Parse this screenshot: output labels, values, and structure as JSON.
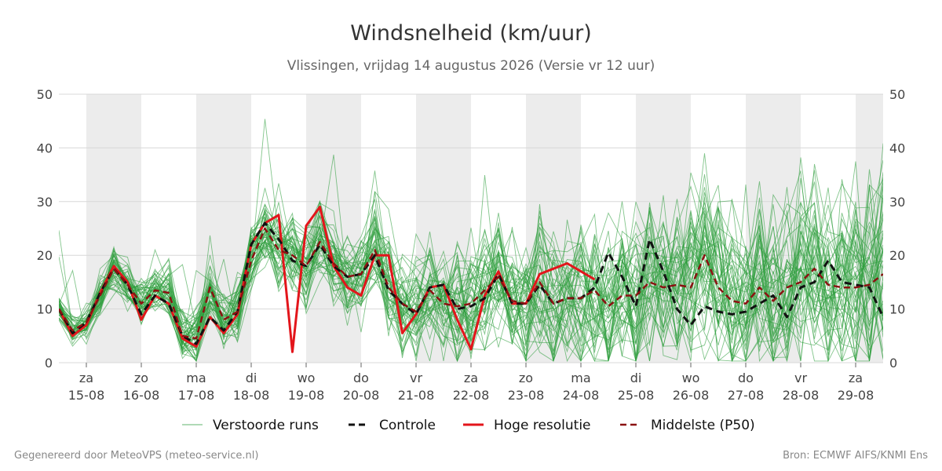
{
  "chart_data": {
    "type": "line",
    "title": "Windsnelheid (km/uur)",
    "subtitle": "Vlissingen, vrijdag 14 augustus 2026 (Versie vr 12 uur)",
    "ylim": [
      0,
      50
    ],
    "y_ticks": [
      0,
      10,
      20,
      30,
      40,
      50
    ],
    "grid": true,
    "legend_position": "bottom",
    "x_start": "2026-08-14T12:00",
    "x_end": "2026-08-29T12:00",
    "x_step_hours": 6,
    "x_ticks": [
      {
        "day": "za",
        "date": "15-08"
      },
      {
        "day": "zo",
        "date": "16-08"
      },
      {
        "day": "ma",
        "date": "17-08"
      },
      {
        "day": "di",
        "date": "18-08"
      },
      {
        "day": "wo",
        "date": "19-08"
      },
      {
        "day": "do",
        "date": "20-08"
      },
      {
        "day": "vr",
        "date": "21-08"
      },
      {
        "day": "za",
        "date": "22-08"
      },
      {
        "day": "zo",
        "date": "23-08"
      },
      {
        "day": "ma",
        "date": "24-08"
      },
      {
        "day": "di",
        "date": "25-08"
      },
      {
        "day": "wo",
        "date": "26-08"
      },
      {
        "day": "do",
        "date": "27-08"
      },
      {
        "day": "vr",
        "date": "28-08"
      },
      {
        "day": "za",
        "date": "29-08"
      }
    ],
    "colors": {
      "ensemble": "#2e9e3e",
      "control": "#111111",
      "high_res": "#e3151b",
      "median": "#8b1111",
      "shade": "#ececec",
      "grid": "#d8d8d8"
    },
    "series": [
      {
        "name": "Hoge resolutie",
        "values": [
          10,
          5,
          7,
          13,
          18,
          15,
          8,
          12.5,
          11,
          4.5,
          3,
          8.5,
          5.5,
          9,
          22,
          26,
          27.5,
          2,
          25.5,
          29,
          18,
          14,
          12.5,
          20,
          20,
          5.5,
          9,
          14,
          14.5,
          8,
          2.5,
          12.5,
          17,
          11,
          11,
          16.5,
          17.5,
          18.5,
          17,
          15.5
        ]
      },
      {
        "name": "Controle",
        "values": [
          10,
          5.5,
          7.5,
          13,
          17.5,
          14.5,
          9,
          12.5,
          11,
          5,
          3.5,
          8.5,
          6,
          9.5,
          22,
          26,
          23,
          19,
          18,
          22,
          18,
          16,
          16.5,
          20,
          13.5,
          11,
          9,
          14,
          14.5,
          10,
          10.5,
          12,
          16.5,
          11,
          11,
          14.5,
          11,
          12,
          12,
          14,
          20.5,
          16,
          10.5,
          23,
          17,
          10,
          7,
          10.5,
          9.5,
          9,
          9.5,
          11,
          12.5,
          8.5,
          14,
          15,
          19,
          15,
          14.5,
          14,
          8.5
        ]
      },
      {
        "name": "Middelste (P50)",
        "values": [
          10,
          6,
          7.5,
          12.5,
          17.5,
          14.5,
          11,
          13.5,
          13,
          5,
          4.5,
          14,
          8,
          9.5,
          19,
          25,
          21,
          20,
          18,
          22.5,
          18.5,
          16,
          16.5,
          21,
          14,
          11,
          9.5,
          13.5,
          11,
          10.5,
          11,
          13.5,
          16,
          11.5,
          11,
          15,
          11,
          12,
          12,
          13.5,
          10.5,
          12.5,
          12.5,
          15,
          14,
          14.5,
          14,
          20,
          14,
          11.5,
          11,
          14,
          11.5,
          14,
          15,
          17.5,
          14.5,
          14,
          14,
          14.5,
          16.5
        ]
      }
    ],
    "ensemble_count": 50,
    "legend": [
      "Verstoorde runs",
      "Controle",
      "Hoge resolutie",
      "Middelste (P50)"
    ]
  },
  "footer": {
    "left": "Gegenereerd door MeteoVPS (meteo-service.nl)",
    "right": "Bron: ECMWF AIFS/KNMI Ens"
  }
}
